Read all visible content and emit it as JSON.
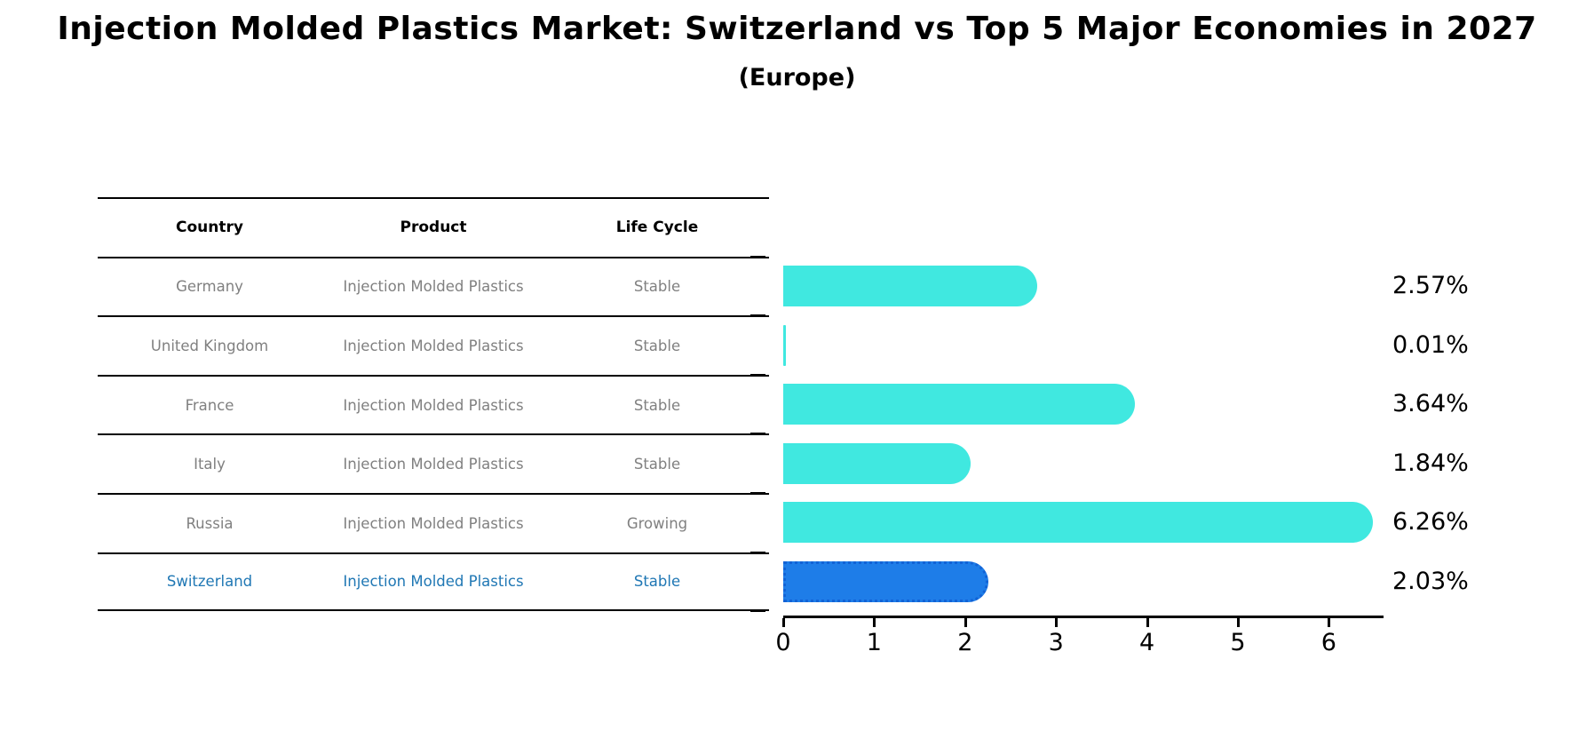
{
  "title": "Injection Molded Plastics Market: Switzerland vs Top 5 Major Economies in 2027",
  "subtitle": "(Europe)",
  "table": {
    "headers": [
      "Country",
      "Product",
      "Life Cycle"
    ],
    "rows": [
      {
        "country": "Germany",
        "product": "Injection Molded Plastics",
        "life_cycle": "Stable",
        "value_label": "2.57%",
        "highlighted": false
      },
      {
        "country": "United Kingdom",
        "product": "Injection Molded Plastics",
        "life_cycle": "Stable",
        "value_label": "0.01%",
        "highlighted": false
      },
      {
        "country": "France",
        "product": "Injection Molded Plastics",
        "life_cycle": "Stable",
        "value_label": "3.64%",
        "highlighted": false
      },
      {
        "country": "Italy",
        "product": "Injection Molded Plastics",
        "life_cycle": "Stable",
        "value_label": "1.84%",
        "highlighted": false
      },
      {
        "country": "Russia",
        "product": "Injection Molded Plastics",
        "life_cycle": "Growing",
        "value_label": "6.26%",
        "highlighted": false
      },
      {
        "country": "Switzerland",
        "product": "Injection Molded Plastics",
        "life_cycle": "Stable",
        "value_label": "2.03%",
        "highlighted": true
      }
    ]
  },
  "chart_data": {
    "type": "bar",
    "orientation": "horizontal",
    "title": "Injection Molded Plastics Market: Switzerland vs Top 5 Major Economies in 2027",
    "subtitle": "(Europe)",
    "categories": [
      "Germany",
      "United Kingdom",
      "France",
      "Italy",
      "Russia",
      "Switzerland"
    ],
    "values": [
      2.57,
      0.01,
      3.64,
      1.84,
      6.26,
      2.03
    ],
    "value_labels": [
      "2.57%",
      "0.01%",
      "3.64%",
      "1.84%",
      "6.26%",
      "2.03%"
    ],
    "units": "percent",
    "x_ticks": [
      0,
      1,
      2,
      3,
      4,
      5,
      6
    ],
    "xlim": [
      0,
      6.6
    ],
    "grid": false,
    "legend": false,
    "bar_color": "#40E8E0",
    "highlight_color": "#1E7DE8",
    "highlight_border_color": "#1263D6",
    "highlight_index": 5,
    "highlight_category": "Switzerland"
  },
  "colors": {
    "background": "#FFFFFF",
    "table_text": "#808080",
    "header_text": "#000000",
    "highlight_text": "#1F77B4",
    "axis": "#000000"
  }
}
